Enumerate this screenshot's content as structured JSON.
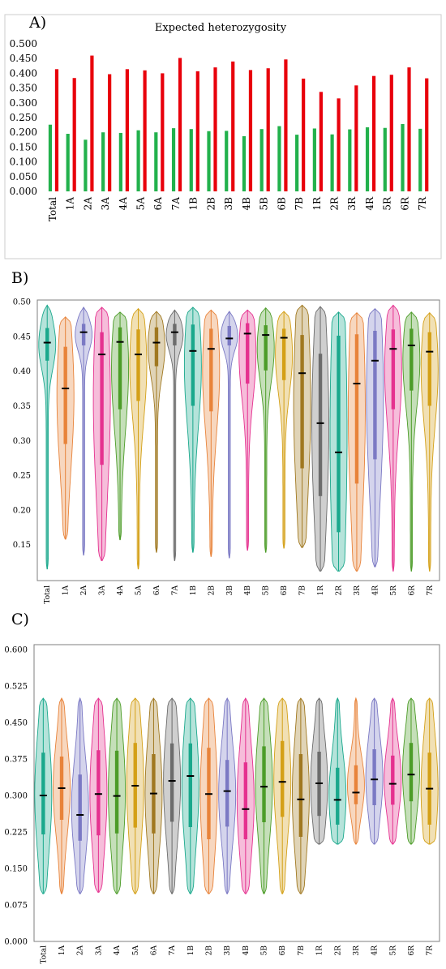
{
  "categories": [
    "Total",
    "1A",
    "2A",
    "3A",
    "4A",
    "5A",
    "6A",
    "7A",
    "1B",
    "2B",
    "3B",
    "4B",
    "5B",
    "6B",
    "7B",
    "1R",
    "2R",
    "3R",
    "4R",
    "5R",
    "6R",
    "7R"
  ],
  "chart_data": [
    {
      "type": "bar",
      "panel_label": "A)",
      "title": "Expected heterozygosity",
      "xlabel": "",
      "ylabel": "",
      "ylim": [
        0,
        0.5
      ],
      "yticks": [
        "0.000",
        "0.050",
        "0.100",
        "0.150",
        "0.200",
        "0.250",
        "0.300",
        "0.350",
        "0.400",
        "0.450",
        "0.500"
      ],
      "grid": false,
      "legend": "none",
      "colors": [
        "#22b14c",
        "#e8000b"
      ],
      "series": [
        {
          "values": [
            0.226,
            0.195,
            0.175,
            0.2,
            0.198,
            0.207,
            0.2,
            0.214,
            0.211,
            0.204,
            0.205,
            0.187,
            0.211,
            0.221,
            0.192,
            0.213,
            0.193,
            0.21,
            0.217,
            0.215,
            0.228,
            0.212
          ]
        },
        {
          "values": [
            0.414,
            0.384,
            0.46,
            0.397,
            0.414,
            0.41,
            0.4,
            0.452,
            0.407,
            0.42,
            0.44,
            0.411,
            0.417,
            0.447,
            0.382,
            0.337,
            0.315,
            0.359,
            0.391,
            0.395,
            0.42,
            0.383
          ]
        }
      ]
    },
    {
      "type": "violin",
      "panel_label": "B)",
      "title": "",
      "xlabel": "",
      "ylabel": "",
      "ylim": [
        0.11,
        0.5
      ],
      "yticks": [
        "0.50",
        "0.45",
        "0.40",
        "0.35",
        "0.30",
        "0.25",
        "0.20",
        "0.15"
      ],
      "colors": [
        "#1aa88c",
        "#e8833a",
        "#7b79c4",
        "#e5318f",
        "#4c9c28",
        "#d4a017",
        "#a07820",
        "#6c6c6c",
        "#1aa88c",
        "#e8833a",
        "#7b79c4",
        "#e5318f",
        "#4c9c28",
        "#d4a017",
        "#a07820",
        "#6c6c6c",
        "#1aa88c",
        "#e8833a",
        "#7b79c4",
        "#e5318f",
        "#4c9c28",
        "#d4a017"
      ],
      "series": [
        {
          "name": "Total",
          "min": 0.115,
          "max": 0.495,
          "q1": 0.415,
          "q3": 0.462,
          "median": 0.441
        },
        {
          "name": "1A",
          "min": 0.158,
          "max": 0.478,
          "q1": 0.295,
          "q3": 0.435,
          "median": 0.375
        },
        {
          "name": "2A",
          "min": 0.135,
          "max": 0.492,
          "q1": 0.437,
          "q3": 0.468,
          "median": 0.456
        },
        {
          "name": "3A",
          "min": 0.127,
          "max": 0.492,
          "q1": 0.265,
          "q3": 0.456,
          "median": 0.424
        },
        {
          "name": "4A",
          "min": 0.157,
          "max": 0.485,
          "q1": 0.345,
          "q3": 0.463,
          "median": 0.442
        },
        {
          "name": "5A",
          "min": 0.115,
          "max": 0.49,
          "q1": 0.357,
          "q3": 0.46,
          "median": 0.424
        },
        {
          "name": "6A",
          "min": 0.139,
          "max": 0.486,
          "q1": 0.407,
          "q3": 0.463,
          "median": 0.441
        },
        {
          "name": "7A",
          "min": 0.127,
          "max": 0.488,
          "q1": 0.437,
          "q3": 0.468,
          "median": 0.456
        },
        {
          "name": "1B",
          "min": 0.139,
          "max": 0.492,
          "q1": 0.35,
          "q3": 0.467,
          "median": 0.429
        },
        {
          "name": "2B",
          "min": 0.133,
          "max": 0.488,
          "q1": 0.342,
          "q3": 0.461,
          "median": 0.432
        },
        {
          "name": "3B",
          "min": 0.131,
          "max": 0.486,
          "q1": 0.437,
          "q3": 0.465,
          "median": 0.447
        },
        {
          "name": "4B",
          "min": 0.142,
          "max": 0.488,
          "q1": 0.382,
          "q3": 0.469,
          "median": 0.454
        },
        {
          "name": "5B",
          "min": 0.139,
          "max": 0.491,
          "q1": 0.401,
          "q3": 0.466,
          "median": 0.452
        },
        {
          "name": "6B",
          "min": 0.145,
          "max": 0.486,
          "q1": 0.387,
          "q3": 0.461,
          "median": 0.448
        },
        {
          "name": "7B",
          "min": 0.146,
          "max": 0.495,
          "q1": 0.26,
          "q3": 0.452,
          "median": 0.397
        },
        {
          "name": "1R",
          "min": 0.112,
          "max": 0.493,
          "q1": 0.22,
          "q3": 0.425,
          "median": 0.325
        },
        {
          "name": "2R",
          "min": 0.112,
          "max": 0.485,
          "q1": 0.168,
          "q3": 0.451,
          "median": 0.283
        },
        {
          "name": "3R",
          "min": 0.112,
          "max": 0.484,
          "q1": 0.238,
          "q3": 0.453,
          "median": 0.382
        },
        {
          "name": "4R",
          "min": 0.118,
          "max": 0.49,
          "q1": 0.273,
          "q3": 0.458,
          "median": 0.415
        },
        {
          "name": "5R",
          "min": 0.112,
          "max": 0.495,
          "q1": 0.345,
          "q3": 0.46,
          "median": 0.432
        },
        {
          "name": "6R",
          "min": 0.112,
          "max": 0.485,
          "q1": 0.372,
          "q3": 0.461,
          "median": 0.437
        },
        {
          "name": "7R",
          "min": 0.112,
          "max": 0.484,
          "q1": 0.35,
          "q3": 0.456,
          "median": 0.428
        }
      ]
    },
    {
      "type": "violin",
      "panel_label": "C)",
      "title": "",
      "xlabel": "",
      "ylabel": "",
      "ylim": [
        0,
        0.6
      ],
      "yticks": [
        "0.600",
        "0.525",
        "0.450",
        "0.375",
        "0.300",
        "0.225",
        "0.150",
        "0.075",
        "0.000"
      ],
      "colors": [
        "#1aa88c",
        "#e8833a",
        "#7b79c4",
        "#e5318f",
        "#4c9c28",
        "#d4a017",
        "#a07820",
        "#6c6c6c",
        "#1aa88c",
        "#e8833a",
        "#7b79c4",
        "#e5318f",
        "#4c9c28",
        "#d4a017",
        "#a07820",
        "#6c6c6c",
        "#1aa88c",
        "#e8833a",
        "#7b79c4",
        "#e5318f",
        "#4c9c28",
        "#d4a017"
      ],
      "series": [
        {
          "name": "Total",
          "min": 0.098,
          "max": 0.5,
          "q1": 0.22,
          "q3": 0.388,
          "median": 0.3
        },
        {
          "name": "1A",
          "min": 0.098,
          "max": 0.5,
          "q1": 0.25,
          "q3": 0.38,
          "median": 0.315
        },
        {
          "name": "2A",
          "min": 0.098,
          "max": 0.5,
          "q1": 0.207,
          "q3": 0.343,
          "median": 0.26
        },
        {
          "name": "3A",
          "min": 0.101,
          "max": 0.5,
          "q1": 0.218,
          "q3": 0.393,
          "median": 0.303
        },
        {
          "name": "4A",
          "min": 0.098,
          "max": 0.5,
          "q1": 0.222,
          "q3": 0.392,
          "median": 0.299
        },
        {
          "name": "5A",
          "min": 0.098,
          "max": 0.5,
          "q1": 0.234,
          "q3": 0.408,
          "median": 0.32
        },
        {
          "name": "6A",
          "min": 0.098,
          "max": 0.5,
          "q1": 0.222,
          "q3": 0.385,
          "median": 0.304
        },
        {
          "name": "7A",
          "min": 0.098,
          "max": 0.5,
          "q1": 0.246,
          "q3": 0.407,
          "median": 0.33
        },
        {
          "name": "1B",
          "min": 0.098,
          "max": 0.5,
          "q1": 0.235,
          "q3": 0.407,
          "median": 0.34
        },
        {
          "name": "2B",
          "min": 0.098,
          "max": 0.5,
          "q1": 0.21,
          "q3": 0.398,
          "median": 0.303
        },
        {
          "name": "3B",
          "min": 0.098,
          "max": 0.5,
          "q1": 0.236,
          "q3": 0.373,
          "median": 0.309
        },
        {
          "name": "4B",
          "min": 0.098,
          "max": 0.5,
          "q1": 0.21,
          "q3": 0.368,
          "median": 0.272
        },
        {
          "name": "5B",
          "min": 0.098,
          "max": 0.5,
          "q1": 0.245,
          "q3": 0.401,
          "median": 0.318
        },
        {
          "name": "6B",
          "min": 0.098,
          "max": 0.5,
          "q1": 0.256,
          "q3": 0.412,
          "median": 0.328
        },
        {
          "name": "7B",
          "min": 0.098,
          "max": 0.5,
          "q1": 0.215,
          "q3": 0.385,
          "median": 0.292
        },
        {
          "name": "1R",
          "min": 0.2,
          "max": 0.5,
          "q1": 0.258,
          "q3": 0.39,
          "median": 0.325
        },
        {
          "name": "2R",
          "min": 0.2,
          "max": 0.5,
          "q1": 0.24,
          "q3": 0.357,
          "median": 0.291
        },
        {
          "name": "3R",
          "min": 0.2,
          "max": 0.5,
          "q1": 0.282,
          "q3": 0.362,
          "median": 0.306
        },
        {
          "name": "4R",
          "min": 0.2,
          "max": 0.5,
          "q1": 0.28,
          "q3": 0.395,
          "median": 0.333
        },
        {
          "name": "5R",
          "min": 0.2,
          "max": 0.5,
          "q1": 0.281,
          "q3": 0.382,
          "median": 0.324
        },
        {
          "name": "6R",
          "min": 0.2,
          "max": 0.5,
          "q1": 0.288,
          "q3": 0.408,
          "median": 0.343
        },
        {
          "name": "7R",
          "min": 0.2,
          "max": 0.5,
          "q1": 0.24,
          "q3": 0.388,
          "median": 0.314
        }
      ]
    }
  ]
}
